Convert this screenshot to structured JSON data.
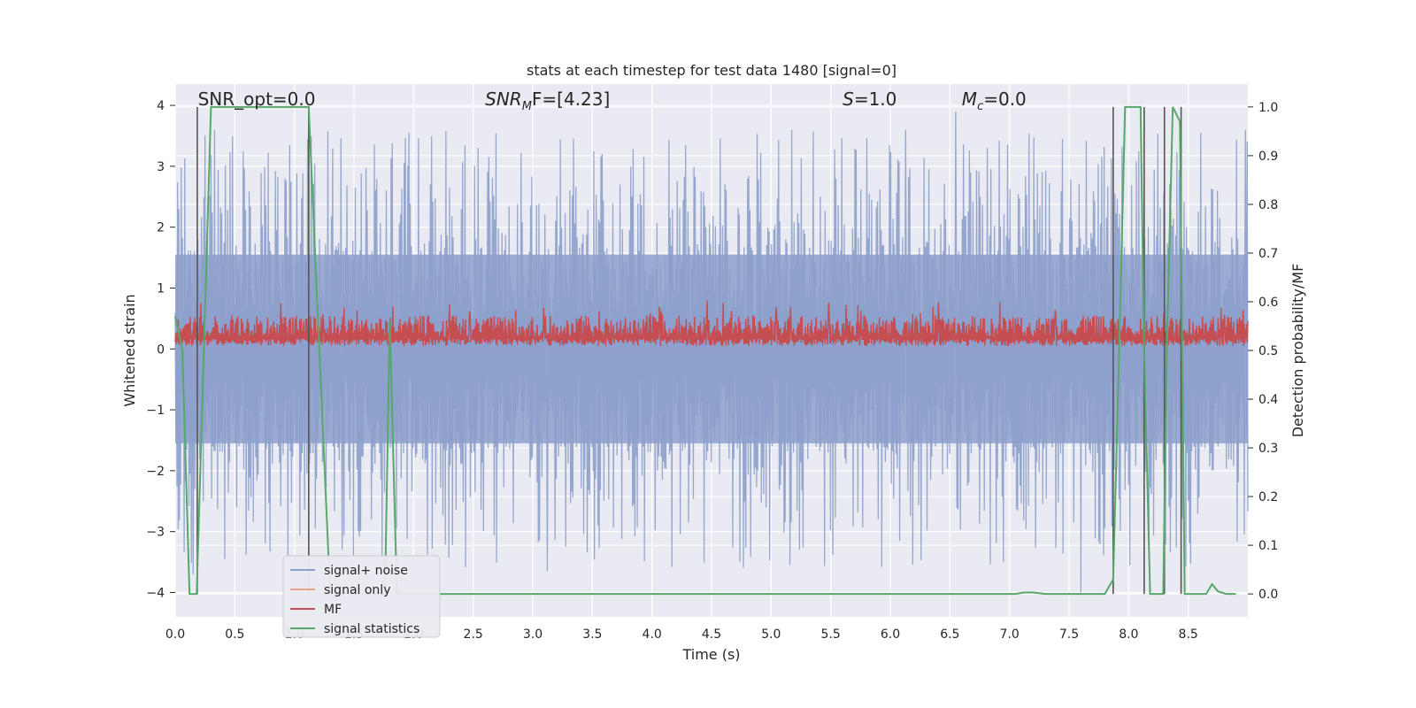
{
  "chart_data": {
    "type": "line",
    "title": "stats at each timestep for test data 1480 [signal=0]",
    "xlabel": "Time (s)",
    "ylabel": "Whitened strain",
    "y2label": "Detection probability/MF",
    "xlim": [
      0,
      9.0
    ],
    "ylim": [
      -4.4,
      4.35
    ],
    "y2lim": [
      -0.047,
      1.047
    ],
    "grid": true,
    "xticks": [
      0.0,
      0.5,
      1.0,
      1.5,
      2.0,
      2.5,
      3.0,
      3.5,
      4.0,
      4.5,
      5.0,
      5.5,
      6.0,
      6.5,
      7.0,
      7.5,
      8.0,
      8.5
    ],
    "xtick_labels": [
      "0.0",
      "0.5",
      "1.0",
      "1.5",
      "2.0",
      "2.5",
      "3.0",
      "3.5",
      "4.0",
      "4.5",
      "5.0",
      "5.5",
      "6.0",
      "6.5",
      "7.0",
      "7.5",
      "8.0",
      "8.5"
    ],
    "yticks": [
      -4,
      -3,
      -2,
      -1,
      0,
      1,
      2,
      3,
      4
    ],
    "ytick_labels": [
      "−4",
      "−3",
      "−2",
      "−1",
      "0",
      "1",
      "2",
      "3",
      "4"
    ],
    "y2ticks": [
      0.0,
      0.1,
      0.2,
      0.3,
      0.4,
      0.5,
      0.6,
      0.7,
      0.8,
      0.9,
      1.0
    ],
    "y2tick_labels": [
      "0.0",
      "0.1",
      "0.2",
      "0.3",
      "0.4",
      "0.5",
      "0.6",
      "0.7",
      "0.8",
      "0.9",
      "1.0"
    ],
    "annotations": [
      {
        "id": "snr-opt",
        "text": "SNR_opt=0.0",
        "x": 0.19
      },
      {
        "id": "snr-mf",
        "text": "SNR",
        "sub": "M",
        "rest": "F=[4.23]",
        "italic": true,
        "x": 2.6
      },
      {
        "id": "s-value",
        "text": "S",
        "rest": "=1.0",
        "italic": true,
        "x": 5.6
      },
      {
        "id": "mc-value",
        "text": "M",
        "sub": "c",
        "rest": "=0.0",
        "italic": true,
        "x": 6.6
      }
    ],
    "annotation_y": 4.1,
    "legend": {
      "placement": "lower-left",
      "entries": [
        {
          "label": "signal+ noise",
          "color": "#8da0cb"
        },
        {
          "label": "signal only",
          "color": "#e8a58b"
        },
        {
          "label": "MF",
          "color": "#c44e52"
        },
        {
          "label": "signal statistics",
          "color": "#55a868"
        }
      ]
    },
    "noise": {
      "name": "signal+ noise",
      "color": "#8da0cb",
      "n_points": 1800,
      "core_amplitude": 1.55,
      "peak_range": [
        1.6,
        3.6
      ],
      "notable_peaks": [
        {
          "x": 1.12,
          "y": 3.2
        },
        {
          "x": 2.54,
          "y": 3.3
        },
        {
          "x": 6.13,
          "y": 3.6
        },
        {
          "x": 6.55,
          "y": 3.9
        },
        {
          "x": 8.98,
          "y": 3.6
        },
        {
          "x": 0.15,
          "y": -3.7
        },
        {
          "x": 3.12,
          "y": -3.65
        },
        {
          "x": 7.6,
          "y": -4.0
        },
        {
          "x": 1.4,
          "y": -3.3
        },
        {
          "x": 6.95,
          "y": -3.5
        }
      ]
    },
    "mf": {
      "name": "MF",
      "color": "#c44e52",
      "n_points": 1800,
      "base": 0.0,
      "typical_range": [
        0.05,
        0.55
      ],
      "peak_max": 0.8
    },
    "signal_statistics": {
      "name": "signal statistics",
      "color": "#55a868",
      "axis": "right",
      "x": [
        0.0,
        0.06,
        0.12,
        0.18,
        0.24,
        0.3,
        0.6,
        0.9,
        1.12,
        1.2,
        1.3,
        1.5,
        1.7,
        1.76,
        1.8,
        1.86,
        1.92,
        2.0,
        3.0,
        4.0,
        5.0,
        6.0,
        6.9,
        7.05,
        7.12,
        7.2,
        7.3,
        7.5,
        7.8,
        7.87,
        7.92,
        7.97,
        8.03,
        8.1,
        8.13,
        8.18,
        8.24,
        8.29,
        8.32,
        8.37,
        8.43,
        8.47,
        8.55,
        8.6,
        8.65,
        8.7,
        8.75,
        8.82,
        8.9
      ],
      "y": [
        0.57,
        0.5,
        0.0,
        0.0,
        0.5,
        1.0,
        1.0,
        1.0,
        1.0,
        0.55,
        0.0,
        0.0,
        0.0,
        0.0,
        0.56,
        0.0,
        0.0,
        0.0,
        0.0,
        0.0,
        0.0,
        0.0,
        0.0,
        0.0,
        0.003,
        0.003,
        0.0,
        0.0,
        0.0,
        0.03,
        0.5,
        1.0,
        1.0,
        1.0,
        0.5,
        0.0,
        0.0,
        0.0,
        0.5,
        1.0,
        0.97,
        0.0,
        0.0,
        0.0,
        0.0,
        0.02,
        0.005,
        0.0,
        0.0
      ]
    },
    "vertical_markers": {
      "color": "#555555",
      "axis": "right",
      "x": [
        0.185,
        1.12,
        7.87,
        8.13,
        8.3,
        8.44
      ],
      "y_range": [
        0.0,
        1.0
      ]
    }
  }
}
